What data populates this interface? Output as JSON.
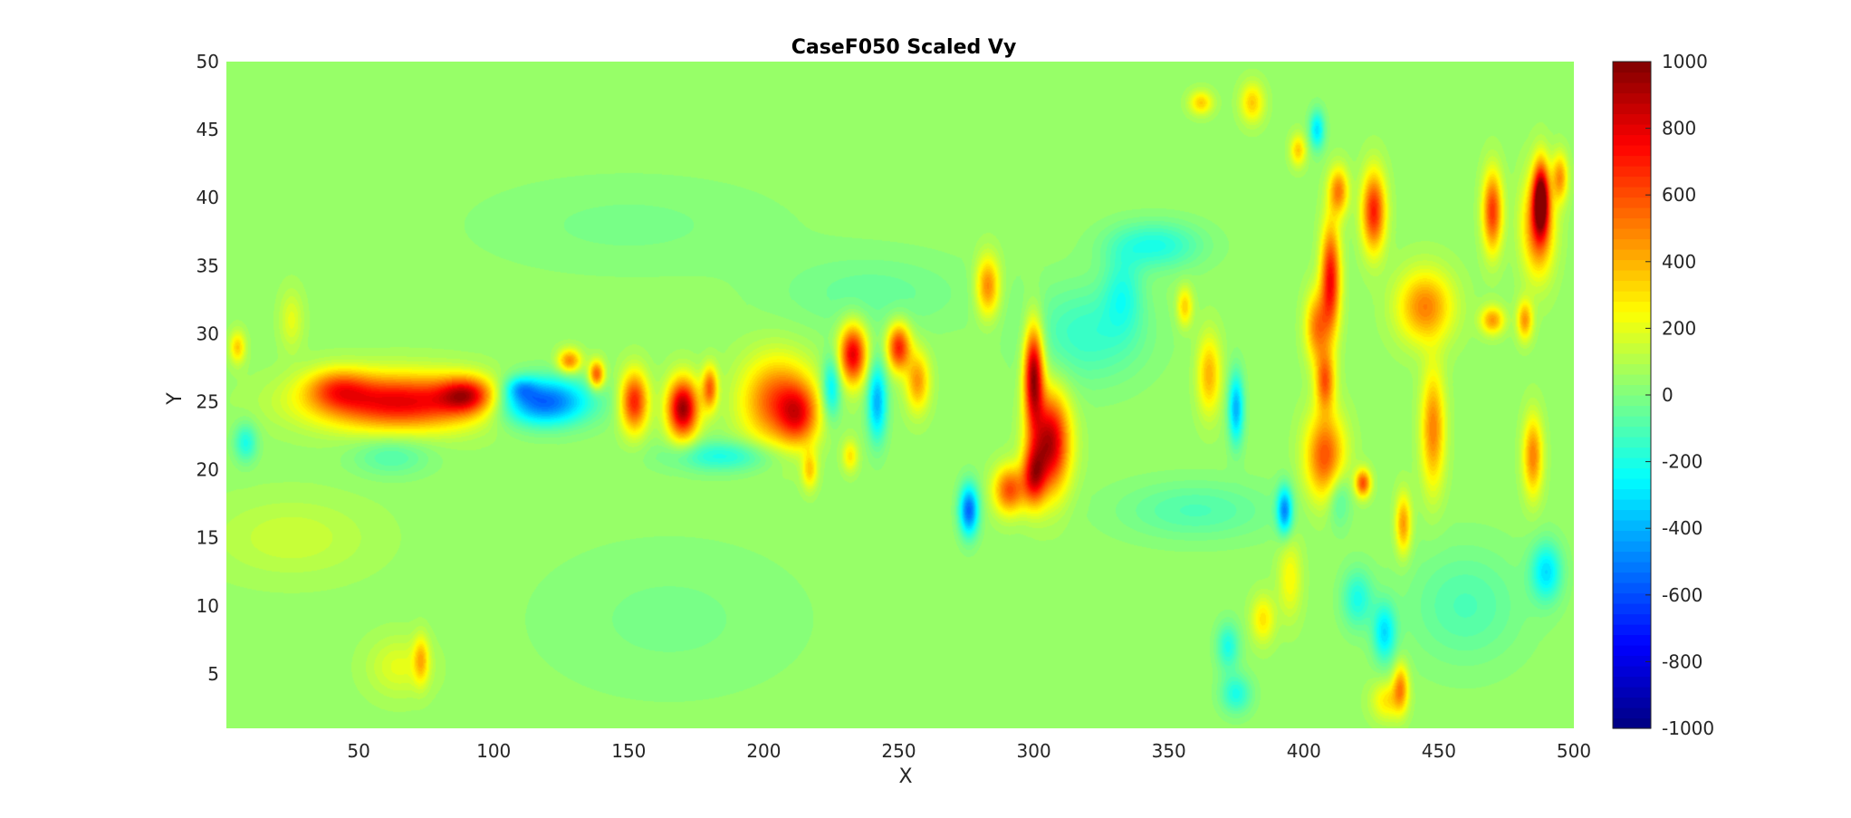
{
  "chart_data": {
    "type": "heatmap",
    "title": "CaseF050 Scaled Vy",
    "xlabel": "X",
    "ylabel": "Y",
    "xlim": [
      1,
      500
    ],
    "ylim": [
      1,
      50
    ],
    "x_ticks": [
      50,
      100,
      150,
      200,
      250,
      300,
      350,
      400,
      450,
      500
    ],
    "y_ticks": [
      5,
      10,
      15,
      20,
      25,
      30,
      35,
      40,
      45,
      50
    ],
    "colormap": "jet",
    "colorbar": {
      "clim": [
        -1000,
        1000
      ],
      "ticks": [
        1000,
        800,
        600,
        400,
        200,
        0,
        -200,
        -400,
        -600,
        -800,
        -1000
      ],
      "levels": 64
    },
    "grid": false,
    "background_value": 50,
    "features": [
      {
        "x": 65,
        "y": 25,
        "sx": 22,
        "sy": 1.4,
        "value": 750
      },
      {
        "x": 42,
        "y": 26,
        "sx": 8,
        "sy": 1.0,
        "value": 350
      },
      {
        "x": 90,
        "y": 25.5,
        "sx": 7,
        "sy": 0.9,
        "value": 550
      },
      {
        "x": 118,
        "y": 25,
        "sx": 12,
        "sy": 1.2,
        "value": -650
      },
      {
        "x": 110,
        "y": 26,
        "sx": 4,
        "sy": 0.6,
        "value": -250
      },
      {
        "x": 128,
        "y": 28,
        "sx": 3,
        "sy": 0.6,
        "value": 450
      },
      {
        "x": 138,
        "y": 27,
        "sx": 2,
        "sy": 0.7,
        "value": 550
      },
      {
        "x": 152,
        "y": 25,
        "sx": 3.5,
        "sy": 1.5,
        "value": 650
      },
      {
        "x": 170,
        "y": 24.5,
        "sx": 4,
        "sy": 1.5,
        "value": 900
      },
      {
        "x": 180,
        "y": 26,
        "sx": 2,
        "sy": 1.1,
        "value": 500
      },
      {
        "x": 205,
        "y": 25,
        "sx": 9,
        "sy": 2.2,
        "value": 550
      },
      {
        "x": 213,
        "y": 24,
        "sx": 5,
        "sy": 1.5,
        "value": 450
      },
      {
        "x": 185,
        "y": 21,
        "sx": 14,
        "sy": 0.8,
        "value": -250
      },
      {
        "x": 225,
        "y": 26,
        "sx": 2.5,
        "sy": 1.6,
        "value": -350
      },
      {
        "x": 233,
        "y": 28.5,
        "sx": 3.5,
        "sy": 1.5,
        "value": 750
      },
      {
        "x": 242,
        "y": 25,
        "sx": 2.5,
        "sy": 2.0,
        "value": -450
      },
      {
        "x": 250,
        "y": 29,
        "sx": 3,
        "sy": 1.2,
        "value": 650
      },
      {
        "x": 257,
        "y": 26.5,
        "sx": 3,
        "sy": 1.5,
        "value": 400
      },
      {
        "x": 232,
        "y": 21,
        "sx": 2,
        "sy": 0.8,
        "value": 250
      },
      {
        "x": 217,
        "y": 20,
        "sx": 2,
        "sy": 1.0,
        "value": 300
      },
      {
        "x": 276,
        "y": 17,
        "sx": 2.5,
        "sy": 1.3,
        "value": -600
      },
      {
        "x": 283,
        "y": 33.5,
        "sx": 3,
        "sy": 1.5,
        "value": 450
      },
      {
        "x": 300,
        "y": 27,
        "sx": 2.5,
        "sy": 2.5,
        "value": 900
      },
      {
        "x": 306,
        "y": 22,
        "sx": 5,
        "sy": 2.5,
        "value": 850
      },
      {
        "x": 291,
        "y": 18.5,
        "sx": 4,
        "sy": 1.2,
        "value": 550
      },
      {
        "x": 300,
        "y": 19.5,
        "sx": 3,
        "sy": 1.5,
        "value": 600
      },
      {
        "x": 345,
        "y": 36.5,
        "sx": 12,
        "sy": 1.2,
        "value": -250
      },
      {
        "x": 333,
        "y": 33,
        "sx": 5,
        "sy": 2.0,
        "value": -200
      },
      {
        "x": 365,
        "y": 27,
        "sx": 3,
        "sy": 2.0,
        "value": 350
      },
      {
        "x": 375,
        "y": 24.5,
        "sx": 2,
        "sy": 1.8,
        "value": -450
      },
      {
        "x": 356,
        "y": 32,
        "sx": 2,
        "sy": 1.0,
        "value": 300
      },
      {
        "x": 393,
        "y": 17,
        "sx": 2,
        "sy": 1.2,
        "value": -500
      },
      {
        "x": 405,
        "y": 30.5,
        "sx": 3,
        "sy": 1.8,
        "value": 450
      },
      {
        "x": 410,
        "y": 34,
        "sx": 2.5,
        "sy": 2.8,
        "value": 700
      },
      {
        "x": 408,
        "y": 26.5,
        "sx": 2.5,
        "sy": 1.5,
        "value": 500
      },
      {
        "x": 408,
        "y": 21,
        "sx": 5,
        "sy": 2.2,
        "value": 550
      },
      {
        "x": 422,
        "y": 19,
        "sx": 2,
        "sy": 0.7,
        "value": 550
      },
      {
        "x": 413,
        "y": 40.5,
        "sx": 2.5,
        "sy": 1.2,
        "value": 450
      },
      {
        "x": 426,
        "y": 39,
        "sx": 3,
        "sy": 2.0,
        "value": 650
      },
      {
        "x": 445,
        "y": 32,
        "sx": 7,
        "sy": 1.8,
        "value": 450
      },
      {
        "x": 448,
        "y": 23,
        "sx": 3,
        "sy": 3.0,
        "value": 450
      },
      {
        "x": 437,
        "y": 16,
        "sx": 2,
        "sy": 1.5,
        "value": 400
      },
      {
        "x": 436,
        "y": 4,
        "sx": 2,
        "sy": 1.2,
        "value": 400
      },
      {
        "x": 431,
        "y": 3,
        "sx": 4,
        "sy": 1.0,
        "value": 250
      },
      {
        "x": 430,
        "y": 8,
        "sx": 3,
        "sy": 1.5,
        "value": -350
      },
      {
        "x": 420,
        "y": 10.5,
        "sx": 4,
        "sy": 1.5,
        "value": -250
      },
      {
        "x": 413,
        "y": 18,
        "sx": 3,
        "sy": 1.5,
        "value": -200
      },
      {
        "x": 395,
        "y": 12,
        "sx": 3,
        "sy": 2.0,
        "value": 200
      },
      {
        "x": 385,
        "y": 9,
        "sx": 3,
        "sy": 1.2,
        "value": 250
      },
      {
        "x": 372,
        "y": 7,
        "sx": 3,
        "sy": 1.2,
        "value": -250
      },
      {
        "x": 375,
        "y": 3.5,
        "sx": 4,
        "sy": 1.0,
        "value": -250
      },
      {
        "x": 470,
        "y": 39,
        "sx": 2.5,
        "sy": 2.0,
        "value": 600
      },
      {
        "x": 487,
        "y": 38,
        "sx": 4,
        "sy": 2.5,
        "value": 550
      },
      {
        "x": 488,
        "y": 40,
        "sx": 2,
        "sy": 1.8,
        "value": 850
      },
      {
        "x": 495,
        "y": 41.5,
        "sx": 2,
        "sy": 1.2,
        "value": 400
      },
      {
        "x": 482,
        "y": 31,
        "sx": 2,
        "sy": 1.0,
        "value": 400
      },
      {
        "x": 470,
        "y": 31,
        "sx": 3,
        "sy": 0.7,
        "value": 400
      },
      {
        "x": 485,
        "y": 21,
        "sx": 2.5,
        "sy": 2.0,
        "value": 450
      },
      {
        "x": 490,
        "y": 12.5,
        "sx": 4,
        "sy": 1.5,
        "value": -350
      },
      {
        "x": 381,
        "y": 47,
        "sx": 3,
        "sy": 1.0,
        "value": 300
      },
      {
        "x": 362,
        "y": 47,
        "sx": 3,
        "sy": 0.6,
        "value": 300
      },
      {
        "x": 405,
        "y": 45,
        "sx": 2,
        "sy": 1.0,
        "value": -350
      },
      {
        "x": 398,
        "y": 43.5,
        "sx": 2,
        "sy": 0.8,
        "value": 300
      },
      {
        "x": 73,
        "y": 6,
        "sx": 2,
        "sy": 1.2,
        "value": 300
      },
      {
        "x": 65,
        "y": 5.5,
        "sx": 8,
        "sy": 1.5,
        "value": 150
      },
      {
        "x": 5,
        "y": 29,
        "sx": 2,
        "sy": 0.8,
        "value": 300
      },
      {
        "x": 8,
        "y": 22,
        "sx": 3,
        "sy": 1.0,
        "value": -250
      },
      {
        "x": 25,
        "y": 31,
        "sx": 3,
        "sy": 1.5,
        "value": 150
      },
      {
        "x": 62,
        "y": 21,
        "sx": 10,
        "sy": 1.0,
        "value": -150
      },
      {
        "x": 240,
        "y": 33,
        "sx": 25,
        "sy": 2.0,
        "value": -100
      },
      {
        "x": 150,
        "y": 38,
        "sx": 40,
        "sy": 2.5,
        "value": -60
      },
      {
        "x": 165,
        "y": 9,
        "sx": 35,
        "sy": 4.0,
        "value": -60
      },
      {
        "x": 320,
        "y": 30,
        "sx": 15,
        "sy": 2.5,
        "value": -200
      },
      {
        "x": 360,
        "y": 17,
        "sx": 20,
        "sy": 1.5,
        "value": -150
      },
      {
        "x": 460,
        "y": 10,
        "sx": 15,
        "sy": 3.0,
        "value": -150
      },
      {
        "x": 25,
        "y": 15,
        "sx": 20,
        "sy": 2.0,
        "value": 100
      }
    ]
  }
}
